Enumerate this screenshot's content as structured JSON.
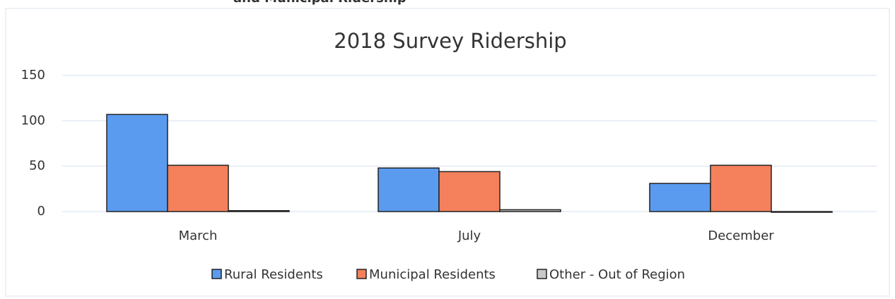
{
  "heading": "and Municipal Ridership",
  "chart_data": {
    "type": "bar",
    "title": "2018 Survey Ridership",
    "categories": [
      "March",
      "July",
      "December"
    ],
    "series": [
      {
        "name": "Rural Residents",
        "color": "#5a9bef",
        "values": [
          107,
          48,
          31
        ]
      },
      {
        "name": "Municipal Residents",
        "color": "#f4805c",
        "values": [
          51,
          44,
          51
        ]
      },
      {
        "name": "Other - Out of Region",
        "color": "#c9c9c9",
        "values": [
          1,
          2,
          0
        ]
      }
    ],
    "ylim": [
      0,
      150
    ],
    "yticks": [
      0,
      50,
      100,
      150
    ],
    "grid": true,
    "legend": "bottom"
  }
}
